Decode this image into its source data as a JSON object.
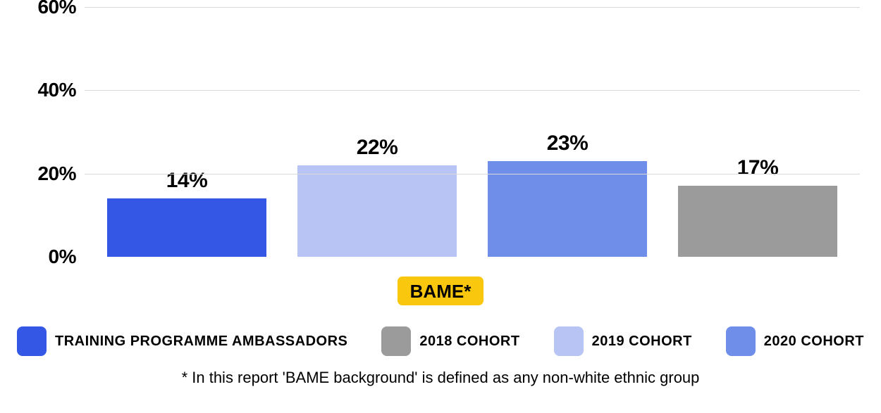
{
  "chart": {
    "type": "bar",
    "ylim": [
      0,
      60
    ],
    "yticks": [
      0,
      20,
      40,
      60
    ],
    "ytick_labels": [
      "0%",
      "20%",
      "40%",
      "60%"
    ],
    "grid_yticks": [
      20,
      40,
      60
    ],
    "grid_color": "#d9d9d9",
    "background_color": "#ffffff",
    "bar_label_fontsize": 30,
    "axis_label_fontsize": 28,
    "bars": [
      {
        "name": "training-programme-ambassadors",
        "value": 14,
        "label": "14%",
        "color": "#3457e6"
      },
      {
        "name": "cohort-2019",
        "value": 22,
        "label": "22%",
        "color": "#b7c4f4"
      },
      {
        "name": "cohort-2020",
        "value": 23,
        "label": "23%",
        "color": "#6e8ee9"
      },
      {
        "name": "cohort-2018",
        "value": 17,
        "label": "17%",
        "color": "#9b9b9b"
      }
    ]
  },
  "x_category": {
    "label": "BAME*",
    "bg_color": "#f9c80e",
    "text_color": "#000000"
  },
  "legend": {
    "items": [
      {
        "label": "TRAINING PROGRAMME AMBASSADORS",
        "color": "#3457e6"
      },
      {
        "label": "2018 COHORT",
        "color": "#9b9b9b"
      },
      {
        "label": "2019 COHORT",
        "color": "#b7c4f4"
      },
      {
        "label": "2020 COHORT",
        "color": "#6e8ee9"
      }
    ],
    "swatch_radius": 8,
    "label_fontsize": 20
  },
  "footnote": "*  In this report 'BAME background' is defined as any non-white ethnic group"
}
